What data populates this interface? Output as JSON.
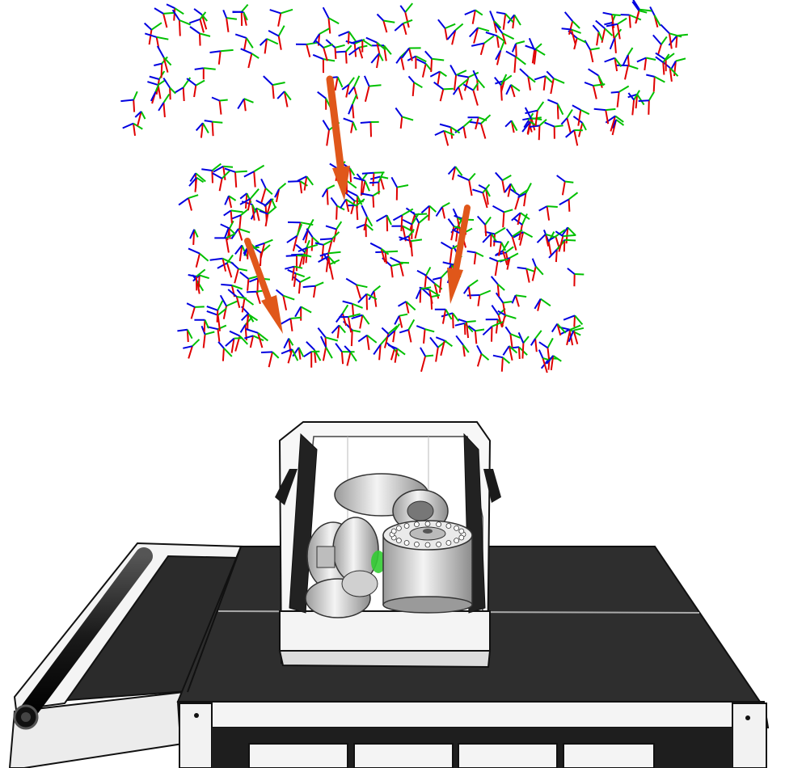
{
  "scene": {
    "background_color": "#ffffff",
    "axis_colors": {
      "x": "#e00000",
      "y": "#00c000",
      "z": "#0000e0"
    },
    "arrow_color": "#e0571a",
    "belt_color": "#2b2b2b",
    "frame_color": "#f2f2f2",
    "outline_color": "#111111",
    "part_color": "#d8d8d8",
    "highlight_color": "#33cc33",
    "icons": [
      "grasp-pose-frame",
      "approach-vector-arrow",
      "conveyor-belt",
      "bin",
      "mechanical-parts"
    ]
  }
}
